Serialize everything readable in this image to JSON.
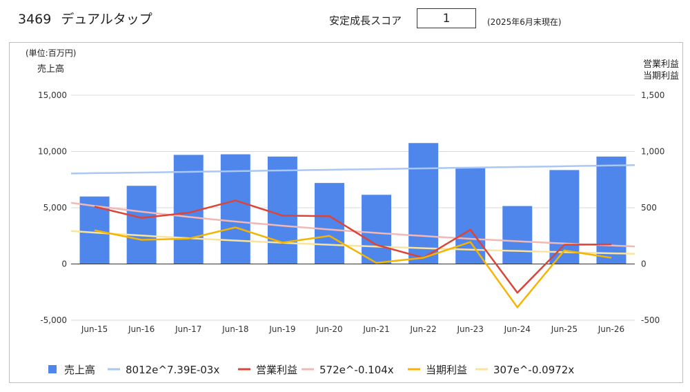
{
  "header": {
    "code": "3469",
    "company": "デュアルタップ",
    "score_label": "安定成長スコア",
    "score_value": "1",
    "as_of": "(2025年6月末現在)"
  },
  "chart_data": {
    "type": "bar",
    "categories": [
      "Jun-15",
      "Jun-16",
      "Jun-17",
      "Jun-18",
      "Jun-19",
      "Jun-20",
      "Jun-21",
      "Jun-22",
      "Jun-23",
      "Jun-24",
      "Jun-25",
      "Jun-26"
    ],
    "unit_label": "(単位:百万円)",
    "left_axis": {
      "label": "売上高",
      "ylim": [
        -5000,
        15000
      ],
      "ticks": [
        -5000,
        0,
        5000,
        10000,
        15000
      ],
      "tick_labels": [
        "-5,000",
        "0",
        "5,000",
        "10,000",
        "15,000"
      ]
    },
    "right_axis": {
      "label_lines": [
        "営業利益",
        "当期利益"
      ],
      "ylim": [
        -500,
        1500
      ],
      "ticks": [
        -500,
        0,
        500,
        1000,
        1500
      ],
      "tick_labels": [
        "-500",
        "0",
        "500",
        "1,000",
        "1,500"
      ]
    },
    "grid": true,
    "legend_position": "bottom",
    "series": [
      {
        "name": "売上高",
        "kind": "bar",
        "axis": "left",
        "color": "#4f86ec",
        "values": [
          6000,
          6950,
          9700,
          9750,
          9550,
          7200,
          6150,
          10750,
          8600,
          5150,
          8350,
          9550
        ]
      },
      {
        "name": "8012e^7.39E-03x",
        "kind": "trend",
        "axis": "left",
        "color": "#a9c7f2",
        "values": [
          8071,
          8131,
          8191,
          8252,
          8313,
          8375,
          8437,
          8499,
          8562,
          8626,
          8690,
          8754
        ]
      },
      {
        "name": "営業利益",
        "kind": "line",
        "axis": "right",
        "color": "#db4437",
        "values": [
          510,
          410,
          455,
          565,
          430,
          425,
          170,
          55,
          305,
          -255,
          170,
          175
        ]
      },
      {
        "name": "572e^-0.104x",
        "kind": "trend",
        "axis": "right",
        "color": "#f2b8b3",
        "values": [
          516,
          465,
          419,
          378,
          340,
          307,
          276,
          249,
          224,
          202,
          182,
          164
        ]
      },
      {
        "name": "当期利益",
        "kind": "line",
        "axis": "right",
        "color": "#f4b400",
        "values": [
          300,
          215,
          225,
          325,
          190,
          250,
          10,
          55,
          195,
          -385,
          120,
          55
        ]
      },
      {
        "name": "307e^-0.0972x",
        "kind": "trend",
        "axis": "right",
        "color": "#fbe49a",
        "values": [
          279,
          253,
          229,
          208,
          188,
          171,
          155,
          140,
          127,
          115,
          105,
          95
        ]
      }
    ]
  }
}
